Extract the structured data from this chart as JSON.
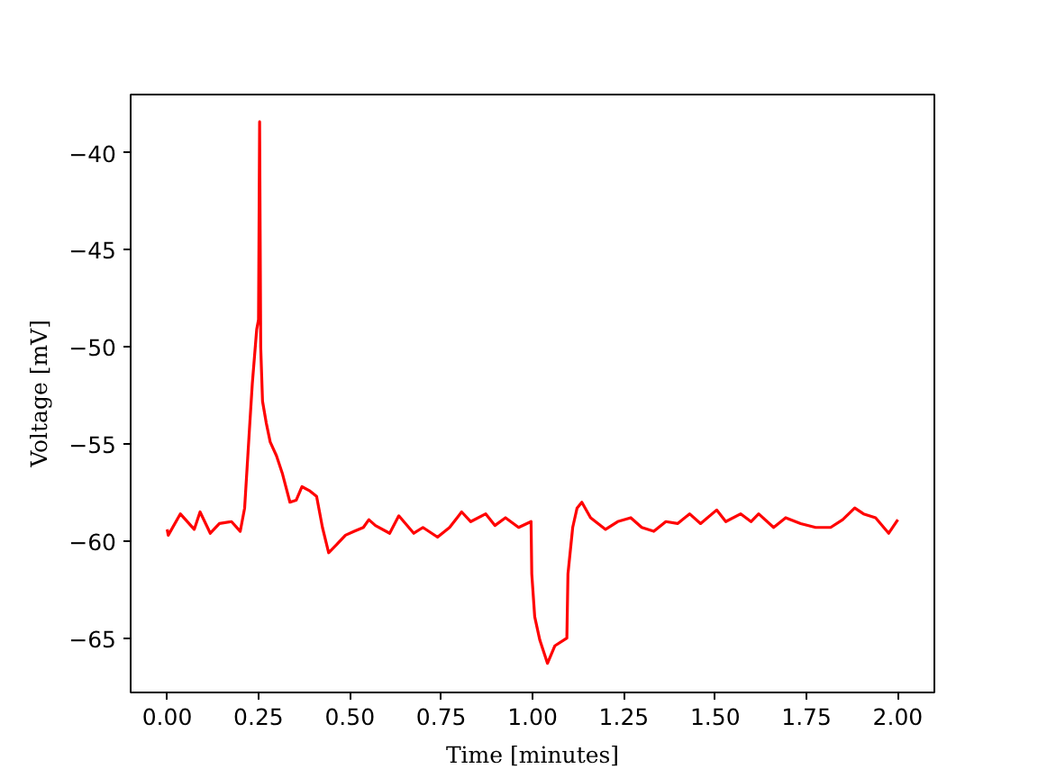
{
  "chart_data": {
    "type": "line",
    "xlabel": "Time [minutes]",
    "ylabel": "Voltage [mV]",
    "x": [
      0.0,
      0.003,
      0.036,
      0.074,
      0.09,
      0.118,
      0.143,
      0.176,
      0.2,
      0.212,
      0.225,
      0.233,
      0.245,
      0.25,
      0.253,
      0.256,
      0.261,
      0.271,
      0.282,
      0.299,
      0.315,
      0.336,
      0.353,
      0.369,
      0.389,
      0.409,
      0.425,
      0.442,
      0.463,
      0.488,
      0.512,
      0.537,
      0.552,
      0.57,
      0.609,
      0.634,
      0.675,
      0.7,
      0.74,
      0.773,
      0.806,
      0.831,
      0.872,
      0.897,
      0.926,
      0.962,
      0.996,
      0.998,
      1.006,
      1.02,
      1.041,
      1.061,
      1.094,
      1.097,
      1.11,
      1.122,
      1.135,
      1.159,
      1.2,
      1.233,
      1.269,
      1.299,
      1.332,
      1.365,
      1.397,
      1.43,
      1.46,
      1.504,
      1.529,
      1.57,
      1.598,
      1.619,
      1.66,
      1.693,
      1.734,
      1.775,
      1.816,
      1.849,
      1.882,
      1.906,
      1.939,
      1.975,
      2.0
    ],
    "series": [
      {
        "color": "#ff0000",
        "values": [
          -59.4,
          -59.7,
          -58.6,
          -59.4,
          -58.5,
          -59.6,
          -59.1,
          -59.0,
          -59.5,
          -58.3,
          -54.3,
          -51.9,
          -49.1,
          -48.6,
          -38.4,
          -50.0,
          -52.8,
          -53.9,
          -54.9,
          -55.6,
          -56.5,
          -58.0,
          -57.9,
          -57.2,
          -57.4,
          -57.7,
          -59.3,
          -60.6,
          -60.2,
          -59.7,
          -59.5,
          -59.3,
          -58.9,
          -59.2,
          -59.6,
          -58.7,
          -59.6,
          -59.3,
          -59.8,
          -59.3,
          -58.5,
          -59.0,
          -58.6,
          -59.2,
          -58.8,
          -59.3,
          -59.0,
          -61.7,
          -63.9,
          -65.1,
          -66.3,
          -65.4,
          -65.0,
          -61.7,
          -59.3,
          -58.3,
          -58.0,
          -58.8,
          -59.4,
          -59.0,
          -58.8,
          -59.3,
          -59.5,
          -59.0,
          -59.1,
          -58.6,
          -59.1,
          -58.4,
          -59.0,
          -58.6,
          -59.0,
          -58.6,
          -59.3,
          -58.8,
          -59.1,
          -59.3,
          -59.3,
          -58.9,
          -58.3,
          -58.6,
          -58.8,
          -59.6,
          -58.9
        ]
      }
    ],
    "xlim": [
      -0.1,
      2.1
    ],
    "ylim": [
      -67.8,
      -37.0
    ],
    "xticks": [
      {
        "value": 0,
        "label": "0.00"
      },
      {
        "value": 0.25,
        "label": "0.25"
      },
      {
        "value": 0.5,
        "label": "0.50"
      },
      {
        "value": 0.75,
        "label": "0.75"
      },
      {
        "value": 1,
        "label": "1.00"
      },
      {
        "value": 1.25,
        "label": "1.25"
      },
      {
        "value": 1.5,
        "label": "1.50"
      },
      {
        "value": 1.75,
        "label": "1.75"
      },
      {
        "value": 2,
        "label": "2.00"
      }
    ],
    "yticks": [
      {
        "value": -65,
        "label": "−65"
      },
      {
        "value": -60,
        "label": "−60"
      },
      {
        "value": -55,
        "label": "−55"
      },
      {
        "value": -50,
        "label": "−50"
      },
      {
        "value": -45,
        "label": "−45"
      },
      {
        "value": -40,
        "label": "−40"
      }
    ],
    "line_style": "solid"
  }
}
